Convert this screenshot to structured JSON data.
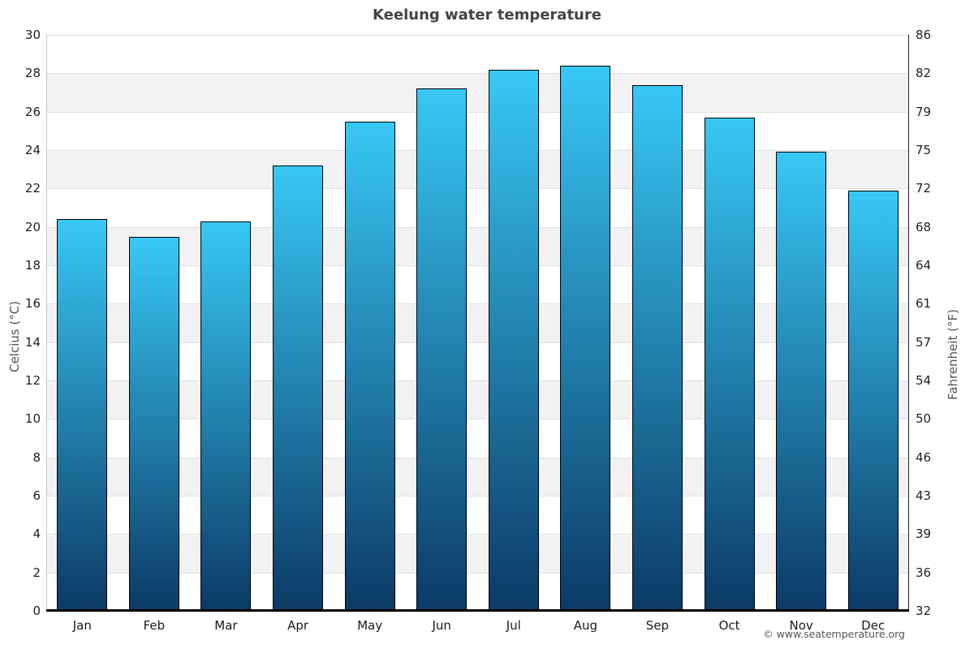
{
  "title": "Keelung water temperature",
  "copyright": "© www.seatemperature.org",
  "chart_data": {
    "type": "bar",
    "title": "Keelung water temperature",
    "categories": [
      "Jan",
      "Feb",
      "Mar",
      "Apr",
      "May",
      "Jun",
      "Jul",
      "Aug",
      "Sep",
      "Oct",
      "Nov",
      "Dec"
    ],
    "values": [
      20.4,
      19.5,
      20.3,
      23.2,
      25.5,
      27.2,
      28.2,
      28.4,
      27.4,
      25.7,
      23.9,
      21.9
    ],
    "ylabel_left": "Celcius (°C)",
    "ylabel_right": "Fahrenheit (°F)",
    "ylim": [
      0,
      30
    ],
    "ytick_step": 2,
    "yticks_left": [
      "0",
      "2",
      "4",
      "6",
      "8",
      "10",
      "12",
      "14",
      "16",
      "18",
      "20",
      "22",
      "24",
      "26",
      "28",
      "30"
    ],
    "yticks_right": [
      "32",
      "36",
      "39",
      "43",
      "46",
      "50",
      "54",
      "57",
      "61",
      "64",
      "68",
      "72",
      "75",
      "79",
      "82",
      "86"
    ],
    "grid": true,
    "legend": false,
    "colors": {
      "bar_top": "#38c8f5",
      "bar_bottom": "#0c3a66",
      "bar_border": "#000000",
      "band": "#f2f2f2",
      "gridline": "#e0e0e0",
      "axis_left": "#c9c9c9",
      "axis_right": "#222222",
      "baseline": "#000000"
    }
  }
}
